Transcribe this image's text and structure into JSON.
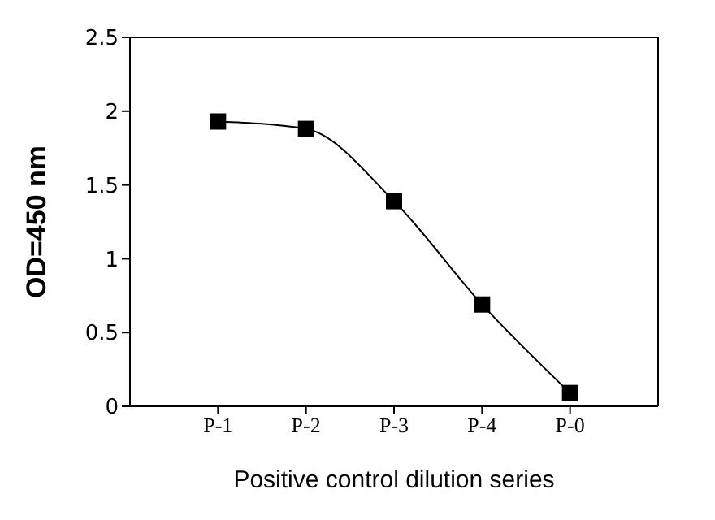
{
  "chart_data": {
    "type": "line",
    "xlabel": "Positive control dilution series",
    "ylabel": "OD=450 nm",
    "categories": [
      "P-1",
      "P-2",
      "P-3",
      "P-4",
      "P-0"
    ],
    "series": [
      {
        "color": "#000000",
        "values": [
          1.93,
          1.88,
          1.39,
          0.69,
          0.09
        ]
      }
    ],
    "ylim": [
      0,
      2.5
    ],
    "yticks": [
      0,
      0.5,
      1,
      1.5,
      2,
      2.5
    ],
    "marker": "square",
    "line_style": "solid",
    "grid": false,
    "legend": false
  }
}
